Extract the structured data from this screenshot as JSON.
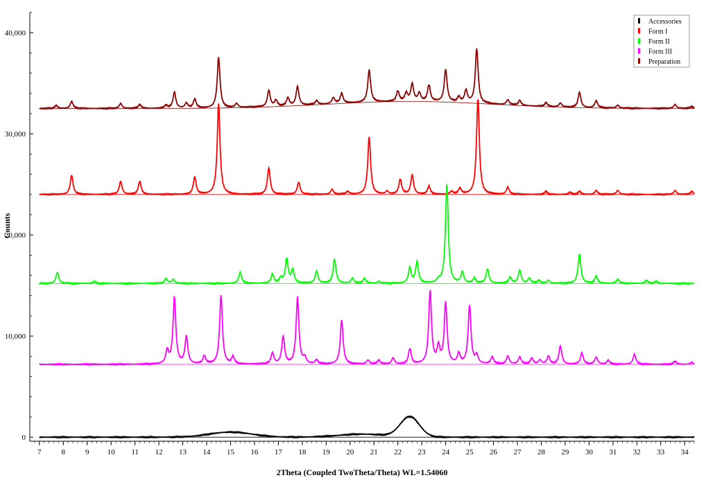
{
  "chart_data": {
    "type": "line",
    "xlabel": "2Theta (Coupled TwoTheta/Theta) WL=1.54060",
    "ylabel": "Counts",
    "xlim": [
      6.6,
      34.4
    ],
    "ylim": [
      -400,
      42000
    ],
    "xticks": [
      7,
      8,
      9,
      10,
      11,
      12,
      13,
      14,
      15,
      16,
      17,
      18,
      19,
      20,
      21,
      22,
      23,
      24,
      25,
      26,
      27,
      28,
      29,
      30,
      31,
      32,
      33,
      34
    ],
    "yticks": [
      {
        "value": 0,
        "label": "0"
      },
      {
        "value": 10000,
        "label": "10,000"
      },
      {
        "value": 20000,
        "label": "20,000"
      },
      {
        "value": 30000,
        "label": "30,000"
      },
      {
        "value": 40000,
        "label": "40,000"
      }
    ],
    "grid": false,
    "legend_position": "top-right",
    "series": [
      {
        "name": "Accessories",
        "color": "#000000",
        "baseline": 0,
        "halo": [
          [
            15.0,
            500,
            0.9
          ],
          [
            20.5,
            300,
            1.0
          ],
          [
            22.5,
            2000,
            0.4
          ]
        ],
        "peaks": [],
        "hump": null
      },
      {
        "name": "Form I",
        "color": "#ff0000",
        "baseline": 24000,
        "hump": null,
        "peaks": [
          [
            8.35,
            1900
          ],
          [
            10.4,
            1300
          ],
          [
            11.2,
            1300
          ],
          [
            13.5,
            1700
          ],
          [
            14.5,
            9000
          ],
          [
            16.6,
            2600
          ],
          [
            17.85,
            1200
          ],
          [
            19.25,
            500
          ],
          [
            19.9,
            300
          ],
          [
            20.8,
            5700
          ],
          [
            21.55,
            300
          ],
          [
            22.1,
            1500
          ],
          [
            22.6,
            1900
          ],
          [
            23.3,
            800
          ],
          [
            24.25,
            300
          ],
          [
            24.6,
            600
          ],
          [
            25.35,
            9500
          ],
          [
            26.6,
            700
          ],
          [
            28.2,
            300
          ],
          [
            29.2,
            200
          ],
          [
            29.6,
            300
          ],
          [
            30.3,
            400
          ],
          [
            31.2,
            400
          ],
          [
            33.6,
            400
          ],
          [
            34.3,
            300
          ]
        ]
      },
      {
        "name": "Form II",
        "color": "#00ff00",
        "baseline": 15200,
        "hump": null,
        "peaks": [
          [
            7.75,
            1100
          ],
          [
            9.3,
            200
          ],
          [
            12.3,
            500
          ],
          [
            12.6,
            400
          ],
          [
            15.4,
            1100
          ],
          [
            16.75,
            900
          ],
          [
            17.1,
            500
          ],
          [
            17.35,
            2400
          ],
          [
            17.6,
            1300
          ],
          [
            18.6,
            1200
          ],
          [
            19.35,
            2400
          ],
          [
            20.1,
            500
          ],
          [
            20.6,
            500
          ],
          [
            21.2,
            200
          ],
          [
            22.5,
            1500
          ],
          [
            22.8,
            2100
          ],
          [
            23.7,
            300
          ],
          [
            24.05,
            9800
          ],
          [
            24.7,
            1100
          ],
          [
            25.2,
            500
          ],
          [
            25.75,
            1400
          ],
          [
            26.7,
            600
          ],
          [
            27.1,
            1300
          ],
          [
            27.5,
            500
          ],
          [
            27.9,
            300
          ],
          [
            28.3,
            300
          ],
          [
            29.6,
            2900
          ],
          [
            30.3,
            700
          ],
          [
            31.2,
            400
          ],
          [
            32.4,
            300
          ],
          [
            32.8,
            200
          ]
        ]
      },
      {
        "name": "Form III",
        "color": "#ff00ff",
        "baseline": 7200,
        "hump": null,
        "peaks": [
          [
            12.35,
            1300
          ],
          [
            12.65,
            6600
          ],
          [
            13.15,
            2700
          ],
          [
            13.9,
            800
          ],
          [
            14.6,
            6800
          ],
          [
            15.1,
            700
          ],
          [
            16.75,
            1100
          ],
          [
            17.2,
            2700
          ],
          [
            17.8,
            6600
          ],
          [
            18.1,
            600
          ],
          [
            18.6,
            400
          ],
          [
            19.65,
            4400
          ],
          [
            20.75,
            400
          ],
          [
            21.2,
            400
          ],
          [
            21.8,
            600
          ],
          [
            22.5,
            1500
          ],
          [
            23.35,
            7200
          ],
          [
            23.7,
            1600
          ],
          [
            24.0,
            6000
          ],
          [
            24.55,
            1000
          ],
          [
            25.0,
            5800
          ],
          [
            25.3,
            800
          ],
          [
            25.95,
            700
          ],
          [
            26.6,
            800
          ],
          [
            27.1,
            700
          ],
          [
            27.6,
            600
          ],
          [
            27.95,
            400
          ],
          [
            28.3,
            800
          ],
          [
            28.8,
            1800
          ],
          [
            29.7,
            1100
          ],
          [
            30.3,
            700
          ],
          [
            30.8,
            400
          ],
          [
            31.9,
            1000
          ],
          [
            33.6,
            300
          ],
          [
            34.3,
            200
          ]
        ]
      },
      {
        "name": "Preparation",
        "color": "#8b0000",
        "baseline": 32500,
        "hump": [
          22.5,
          700,
          3.5
        ],
        "peaks": [
          [
            7.7,
            300
          ],
          [
            8.35,
            700
          ],
          [
            10.4,
            500
          ],
          [
            11.2,
            400
          ],
          [
            12.3,
            300
          ],
          [
            12.65,
            1600
          ],
          [
            13.15,
            500
          ],
          [
            13.5,
            900
          ],
          [
            14.5,
            5000
          ],
          [
            15.25,
            400
          ],
          [
            16.6,
            1600
          ],
          [
            16.9,
            600
          ],
          [
            17.4,
            800
          ],
          [
            17.8,
            1900
          ],
          [
            18.6,
            400
          ],
          [
            19.3,
            600
          ],
          [
            19.65,
            1000
          ],
          [
            20.8,
            3200
          ],
          [
            22.0,
            1000
          ],
          [
            22.35,
            800
          ],
          [
            22.6,
            1700
          ],
          [
            22.9,
            800
          ],
          [
            23.3,
            1600
          ],
          [
            24.0,
            3200
          ],
          [
            24.55,
            500
          ],
          [
            24.85,
            1200
          ],
          [
            25.3,
            5400
          ],
          [
            26.6,
            500
          ],
          [
            27.1,
            500
          ],
          [
            28.2,
            400
          ],
          [
            28.8,
            400
          ],
          [
            29.6,
            1500
          ],
          [
            30.3,
            700
          ],
          [
            31.2,
            300
          ],
          [
            33.6,
            400
          ],
          [
            34.3,
            200
          ]
        ]
      }
    ]
  }
}
